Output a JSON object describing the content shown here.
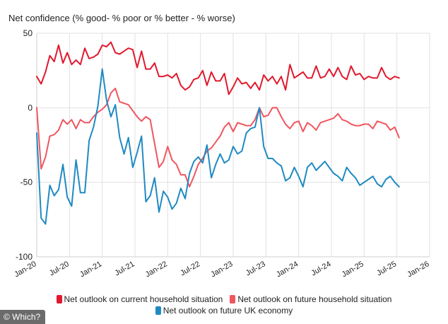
{
  "watermark": "© Which?",
  "chart_data": {
    "type": "line",
    "title": "Net confidence (% good- % poor or % better - % worse)",
    "xlabel": "",
    "ylabel": "Net confidence (% good- % poor or % better - % worse)",
    "ylim": [
      -100,
      50
    ],
    "yticks": [
      50,
      0,
      -50,
      -100
    ],
    "xlim": [
      0,
      72
    ],
    "xticks": [
      {
        "label": "Jan-20",
        "pos": 0
      },
      {
        "label": "Jul-20",
        "pos": 6
      },
      {
        "label": "Jan-21",
        "pos": 12
      },
      {
        "label": "Jul-21",
        "pos": 18
      },
      {
        "label": "Jan-22",
        "pos": 24
      },
      {
        "label": "Jul-22",
        "pos": 30
      },
      {
        "label": "Jan-23",
        "pos": 36
      },
      {
        "label": "Jul-23",
        "pos": 42
      },
      {
        "label": "Jan-24",
        "pos": 48
      },
      {
        "label": "Jul-24",
        "pos": 54
      },
      {
        "label": "Jan-25",
        "pos": 60
      },
      {
        "label": "Jul-25",
        "pos": 66
      },
      {
        "label": "Jan-26",
        "pos": 72
      }
    ],
    "grid": true,
    "legend_position": "bottom",
    "series": [
      {
        "name": "Net outlook on current household situation",
        "color": "#e0192d",
        "x": [
          0,
          0.8,
          1.6,
          2.4,
          3.2,
          4,
          4.8,
          5.6,
          6.4,
          7.2,
          8,
          8.8,
          9.6,
          10.4,
          11.2,
          12,
          12.8,
          13.6,
          14.4,
          15.2,
          16,
          16.8,
          17.6,
          18.4,
          19.2,
          20,
          20.8,
          21.6,
          22.4,
          23.2,
          24,
          24.8,
          25.6,
          26.4,
          27.2,
          28,
          28.8,
          29.6,
          30.4,
          31.2,
          32,
          32.8,
          33.6,
          34.4,
          35.2,
          36,
          36.8,
          37.6,
          38.4,
          39.2,
          40,
          40.8,
          41.6,
          42.4,
          43.2,
          44,
          44.8,
          45.6,
          46.4,
          47.2,
          48,
          48.8,
          49.6,
          50.4,
          51.2,
          52,
          52.8,
          53.6,
          54.4,
          55.2,
          56,
          56.8,
          57.6,
          58.4,
          59.2,
          60,
          60.8,
          61.6,
          62.4,
          63.2,
          64,
          64.8,
          65.6,
          66.4
        ],
        "values": [
          21,
          16,
          24,
          35,
          31,
          42,
          30,
          37,
          29,
          32,
          29,
          40,
          33,
          34,
          36,
          42,
          41,
          44,
          37,
          36,
          38,
          40,
          39,
          27,
          38,
          26,
          26,
          30,
          21,
          21,
          22,
          20,
          23,
          15,
          12,
          14,
          19,
          20,
          25,
          15,
          24,
          18,
          18,
          23,
          9,
          14,
          20,
          16,
          17,
          13,
          17,
          12,
          22,
          18,
          21,
          16,
          21,
          12,
          29,
          20,
          22,
          24,
          20,
          20,
          28,
          20,
          21,
          26,
          21,
          27,
          21,
          19,
          28,
          22,
          23,
          19,
          21,
          20,
          20,
          27,
          21,
          19,
          21,
          20
        ]
      },
      {
        "name": "Net outlook on future household situation",
        "color": "#f0565f",
        "x": [
          0,
          0.8,
          1.6,
          2.4,
          3.2,
          4,
          4.8,
          5.6,
          6.4,
          7.2,
          8,
          8.8,
          9.6,
          10.4,
          11.2,
          12,
          12.8,
          13.6,
          14.4,
          15.2,
          16,
          16.8,
          17.6,
          18.4,
          19.2,
          20,
          20.8,
          21.6,
          22.4,
          23.2,
          24,
          24.8,
          25.6,
          26.4,
          27.2,
          28,
          28.8,
          29.6,
          30.4,
          31.2,
          32,
          32.8,
          33.6,
          34.4,
          35.2,
          36,
          36.8,
          37.6,
          38.4,
          39.2,
          40,
          40.8,
          41.6,
          42.4,
          43.2,
          44,
          44.8,
          45.6,
          46.4,
          47.2,
          48,
          48.8,
          49.6,
          50.4,
          51.2,
          52,
          52.8,
          53.6,
          54.4,
          55.2,
          56,
          56.8,
          57.6,
          58.4,
          59.2,
          60,
          60.8,
          61.6,
          62.4,
          63.2,
          64,
          64.8,
          65.6,
          66.4
        ],
        "values": [
          0,
          -41,
          -33,
          -19,
          -18,
          -15,
          -8,
          -11,
          -8,
          -14,
          -8,
          -10,
          -10,
          -6,
          -3,
          -1,
          2,
          10,
          13,
          4,
          3,
          2,
          -2,
          -6,
          -9,
          -6,
          -8,
          -24,
          -40,
          -36,
          -26,
          -35,
          -38,
          -45,
          -45,
          -53,
          -46,
          -38,
          -34,
          -29,
          -27,
          -23,
          -19,
          -13,
          -10,
          -16,
          -10,
          -11,
          -12,
          -12,
          -8,
          0,
          -6,
          -5,
          0,
          0,
          -6,
          -11,
          -14,
          -10,
          -9,
          -16,
          -10,
          -12,
          -15,
          -10,
          -9,
          -8,
          -7,
          -4,
          -8,
          -9,
          -11,
          -12,
          -12,
          -11,
          -11,
          -14,
          -9,
          -10,
          -11,
          -15,
          -13,
          -20
        ]
      },
      {
        "name": "Net outlook on future UK economy",
        "color": "#1f8ac2",
        "x": [
          0,
          0.8,
          1.6,
          2.4,
          3.2,
          4,
          4.8,
          5.6,
          6.4,
          7.2,
          8,
          8.8,
          9.6,
          10.4,
          11.2,
          12,
          12.8,
          13.6,
          14.4,
          15.2,
          16,
          16.8,
          17.6,
          18.4,
          19.2,
          20,
          20.8,
          21.6,
          22.4,
          23.2,
          24,
          24.8,
          25.6,
          26.4,
          27.2,
          28,
          28.8,
          29.6,
          30.4,
          31.2,
          32,
          32.8,
          33.6,
          34.4,
          35.2,
          36,
          36.8,
          37.6,
          38.4,
          39.2,
          40,
          40.8,
          41.6,
          42.4,
          43.2,
          44,
          44.8,
          45.6,
          46.4,
          47.2,
          48,
          48.8,
          49.6,
          50.4,
          51.2,
          52,
          52.8,
          53.6,
          54.4,
          55.2,
          56,
          56.8,
          57.6,
          58.4,
          59.2,
          60,
          60.8,
          61.6,
          62.4,
          63.2,
          64,
          64.8,
          65.6,
          66.4
        ],
        "values": [
          -17,
          -74,
          -78,
          -52,
          -59,
          -55,
          -38,
          -60,
          -66,
          -35,
          -57,
          -57,
          -22,
          -13,
          1,
          26,
          5,
          -6,
          2,
          -20,
          -31,
          -20,
          -40,
          -30,
          -19,
          -63,
          -59,
          -47,
          -70,
          -56,
          -60,
          -68,
          -64,
          -54,
          -61,
          -44,
          -36,
          -33,
          -37,
          -25,
          -47,
          -38,
          -31,
          -37,
          -35,
          -26,
          -31,
          -29,
          -17,
          -14,
          -13,
          0,
          -26,
          -34,
          -34,
          -37,
          -39,
          -49,
          -47,
          -40,
          -46,
          -53,
          -40,
          -37,
          -42,
          -39,
          -36,
          -40,
          -44,
          -46,
          -49,
          -40,
          -44,
          -47,
          -52,
          -50,
          -48,
          -46,
          -51,
          -53,
          -48,
          -46,
          -50,
          -53
        ]
      }
    ]
  }
}
